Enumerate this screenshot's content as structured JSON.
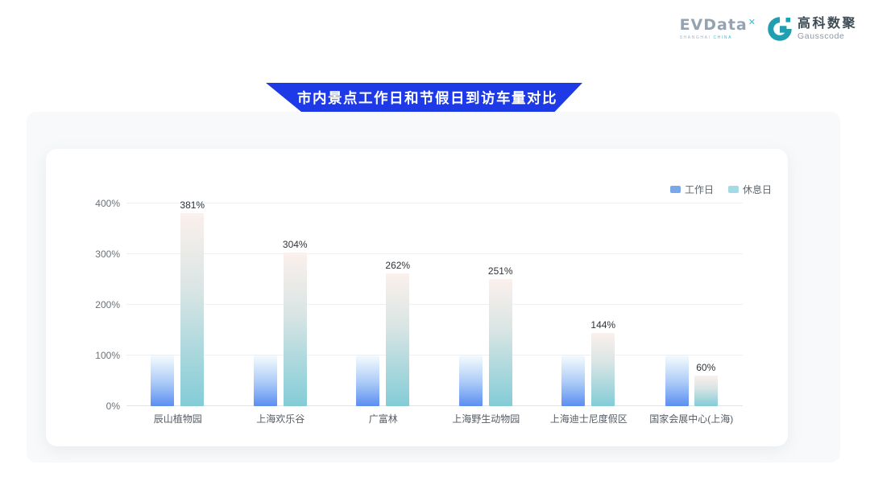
{
  "header": {
    "evdata": {
      "brand": "EVData",
      "mark": "✕",
      "subtext_left": "SHANGHAI ",
      "subtext_right": "CHINA"
    },
    "gausscode": {
      "cn": "高科数聚",
      "en": "Gausscode",
      "icon_color": "#1f9fb0"
    }
  },
  "title_banner": {
    "text": "市内景点工作日和节假日到访车量对比",
    "background": "#1d3ae6",
    "text_color": "#ffffff"
  },
  "chart_data": {
    "type": "bar",
    "title": "市内景点工作日和节假日到访车量对比",
    "categories": [
      "辰山植物园",
      "上海欢乐谷",
      "广富林",
      "上海野生动物园",
      "上海迪士尼度假区",
      "国家会展中心(上海)"
    ],
    "series": [
      {
        "name": "工作日",
        "values": [
          100,
          100,
          100,
          100,
          100,
          100
        ],
        "show_labels": false,
        "labels": [],
        "legend_color": "#79a8ea",
        "gradient": [
          [
            "#f4fbfe",
            "0%"
          ],
          [
            "#b0cef7",
            "50%"
          ],
          [
            "#5b8ef0",
            "100%"
          ]
        ]
      },
      {
        "name": "休息日",
        "values": [
          381,
          304,
          262,
          251,
          144,
          60
        ],
        "show_labels": true,
        "labels": [
          "381%",
          "304%",
          "262%",
          "251%",
          "144%",
          "60%"
        ],
        "legend_color": "#a3dbe5",
        "gradient": [
          [
            "#fbf0ec",
            "0%"
          ],
          [
            "#d9e5e4",
            "40%"
          ],
          [
            "#83ccd7",
            "100%"
          ]
        ]
      }
    ],
    "y_ticks": [
      {
        "label": "0%",
        "value": 0
      },
      {
        "label": "100%",
        "value": 100
      },
      {
        "label": "200%",
        "value": 200
      },
      {
        "label": "300%",
        "value": 300
      },
      {
        "label": "400%",
        "value": 400
      }
    ],
    "ylim": [
      0,
      413
    ],
    "unit": "%",
    "grid": true,
    "legend_position": "top-right"
  }
}
